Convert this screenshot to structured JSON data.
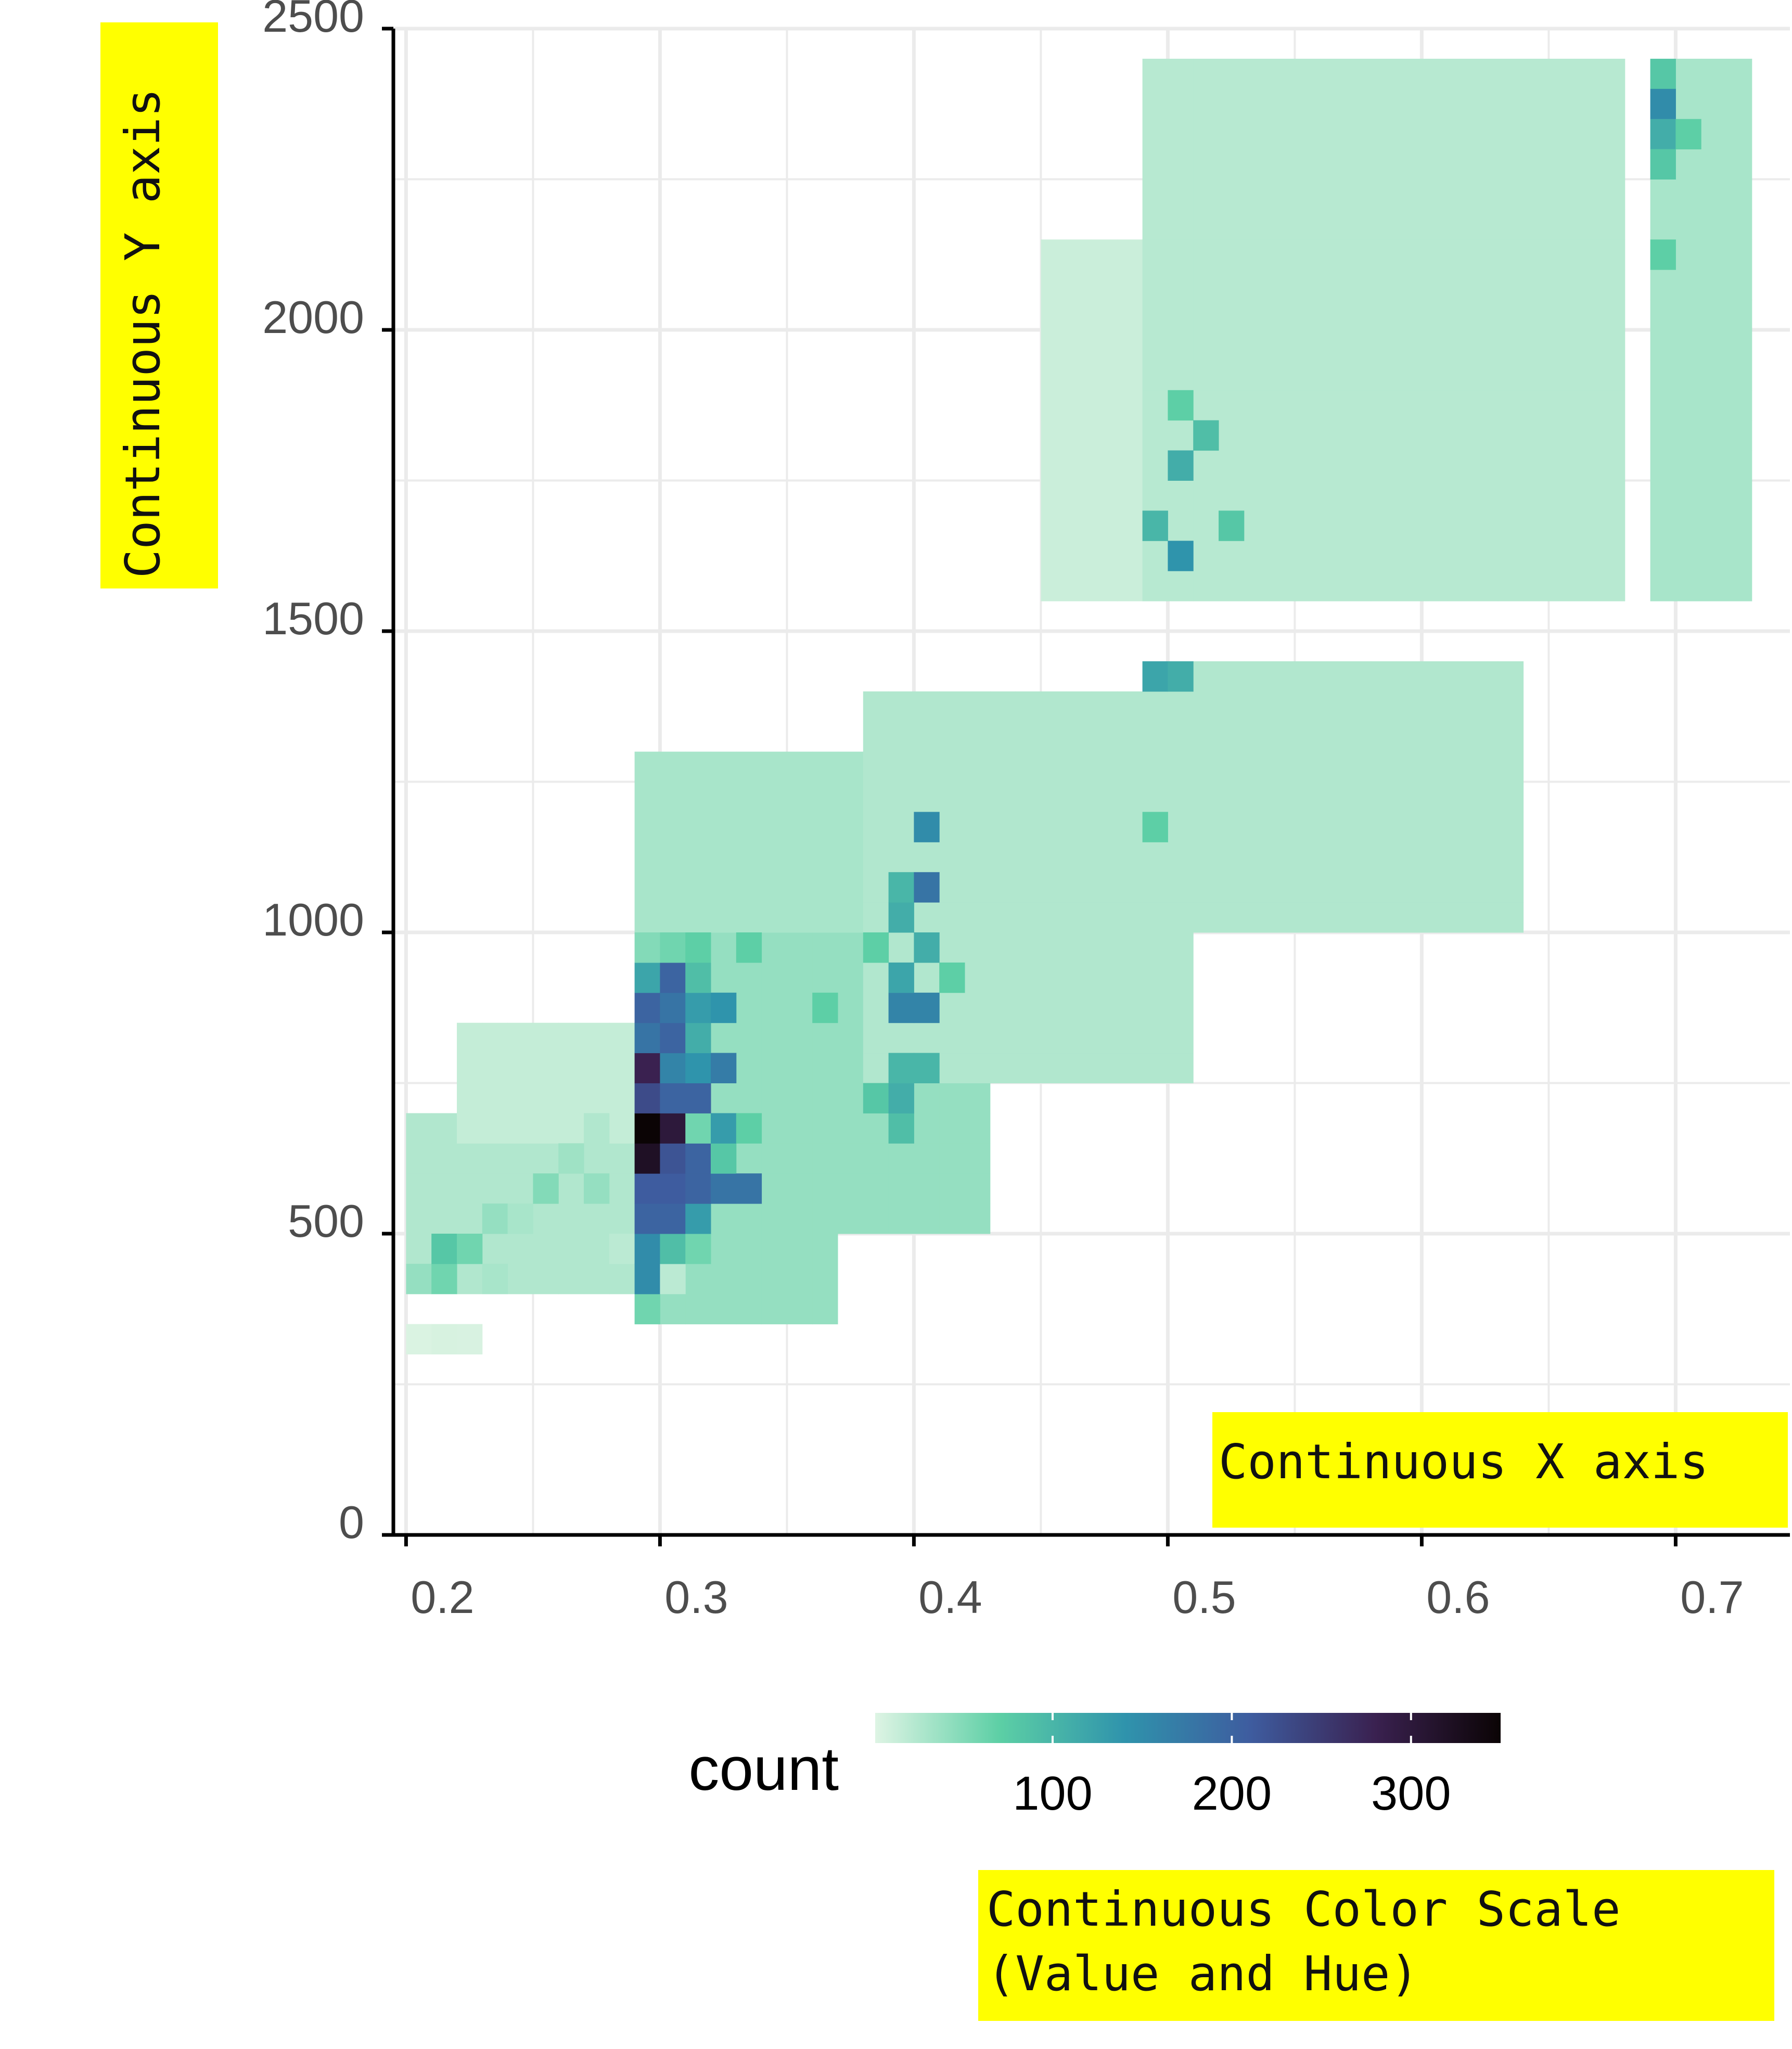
{
  "chart_data": {
    "type": "heatmap",
    "title": "",
    "xlabel": "",
    "ylabel": "",
    "xlim": [
      0.195,
      0.745
    ],
    "ylim": [
      0,
      2500
    ],
    "x_ticks": [
      "0.2",
      "0.3",
      "0.4",
      "0.5",
      "0.6",
      "0.7"
    ],
    "y_ticks": [
      "0",
      "500",
      "1000",
      "1500",
      "2000",
      "2500"
    ],
    "bin_width": [
      0.01,
      50
    ],
    "grid": true,
    "colors": {
      "background": "#ffffff",
      "grid": "#ebebeb",
      "axis": "#000000",
      "annotation": "#ffff00"
    },
    "bins": [
      {
        "x": 0.2,
        "y": 300,
        "count": 3
      },
      {
        "x": 0.21,
        "y": 300,
        "count": 5
      },
      {
        "x": 0.22,
        "y": 300,
        "count": 4
      },
      {
        "x": 0.2,
        "y": 400,
        "count": 40
      },
      {
        "x": 0.21,
        "y": 400,
        "count": 60
      },
      {
        "x": 0.21,
        "y": 450,
        "count": 80
      },
      {
        "x": 0.22,
        "y": 450,
        "count": 60
      },
      {
        "x": 0.23,
        "y": 400,
        "count": 30
      },
      {
        "x": 0.23,
        "y": 500,
        "count": 40
      },
      {
        "x": 0.24,
        "y": 500,
        "count": 30
      },
      {
        "x": 0.25,
        "y": 550,
        "count": 50
      },
      {
        "x": 0.26,
        "y": 600,
        "count": 35
      },
      {
        "x": 0.27,
        "y": 550,
        "count": 40
      },
      {
        "x": 0.27,
        "y": 650,
        "count": 25
      },
      {
        "x": 0.28,
        "y": 450,
        "count": 20
      },
      {
        "x": 0.29,
        "y": 350,
        "count": 60
      },
      {
        "x": 0.29,
        "y": 400,
        "count": 150
      },
      {
        "x": 0.29,
        "y": 450,
        "count": 150
      },
      {
        "x": 0.29,
        "y": 500,
        "count": 200
      },
      {
        "x": 0.29,
        "y": 550,
        "count": 210
      },
      {
        "x": 0.29,
        "y": 600,
        "count": 320
      },
      {
        "x": 0.29,
        "y": 650,
        "count": 350
      },
      {
        "x": 0.29,
        "y": 700,
        "count": 230
      },
      {
        "x": 0.29,
        "y": 750,
        "count": 280
      },
      {
        "x": 0.29,
        "y": 800,
        "count": 180
      },
      {
        "x": 0.29,
        "y": 850,
        "count": 200
      },
      {
        "x": 0.29,
        "y": 900,
        "count": 120
      },
      {
        "x": 0.29,
        "y": 950,
        "count": 50
      },
      {
        "x": 0.3,
        "y": 400,
        "count": 20
      },
      {
        "x": 0.3,
        "y": 450,
        "count": 90
      },
      {
        "x": 0.3,
        "y": 500,
        "count": 200
      },
      {
        "x": 0.3,
        "y": 550,
        "count": 210
      },
      {
        "x": 0.3,
        "y": 600,
        "count": 220
      },
      {
        "x": 0.3,
        "y": 650,
        "count": 300
      },
      {
        "x": 0.3,
        "y": 700,
        "count": 200
      },
      {
        "x": 0.3,
        "y": 750,
        "count": 160
      },
      {
        "x": 0.3,
        "y": 800,
        "count": 200
      },
      {
        "x": 0.3,
        "y": 850,
        "count": 180
      },
      {
        "x": 0.3,
        "y": 900,
        "count": 200
      },
      {
        "x": 0.3,
        "y": 950,
        "count": 60
      },
      {
        "x": 0.31,
        "y": 450,
        "count": 60
      },
      {
        "x": 0.31,
        "y": 500,
        "count": 130
      },
      {
        "x": 0.31,
        "y": 550,
        "count": 200
      },
      {
        "x": 0.31,
        "y": 600,
        "count": 200
      },
      {
        "x": 0.31,
        "y": 650,
        "count": 60
      },
      {
        "x": 0.31,
        "y": 700,
        "count": 200
      },
      {
        "x": 0.31,
        "y": 750,
        "count": 140
      },
      {
        "x": 0.31,
        "y": 800,
        "count": 110
      },
      {
        "x": 0.31,
        "y": 850,
        "count": 130
      },
      {
        "x": 0.31,
        "y": 900,
        "count": 90
      },
      {
        "x": 0.31,
        "y": 950,
        "count": 70
      },
      {
        "x": 0.32,
        "y": 550,
        "count": 180
      },
      {
        "x": 0.32,
        "y": 600,
        "count": 80
      },
      {
        "x": 0.32,
        "y": 650,
        "count": 130
      },
      {
        "x": 0.32,
        "y": 750,
        "count": 170
      },
      {
        "x": 0.32,
        "y": 850,
        "count": 140
      },
      {
        "x": 0.33,
        "y": 550,
        "count": 180
      },
      {
        "x": 0.33,
        "y": 650,
        "count": 70
      },
      {
        "x": 0.33,
        "y": 950,
        "count": 70
      },
      {
        "x": 0.36,
        "y": 850,
        "count": 70
      },
      {
        "x": 0.38,
        "y": 700,
        "count": 80
      },
      {
        "x": 0.38,
        "y": 950,
        "count": 70
      },
      {
        "x": 0.39,
        "y": 650,
        "count": 90
      },
      {
        "x": 0.39,
        "y": 700,
        "count": 110
      },
      {
        "x": 0.39,
        "y": 750,
        "count": 100
      },
      {
        "x": 0.39,
        "y": 850,
        "count": 160
      },
      {
        "x": 0.39,
        "y": 900,
        "count": 120
      },
      {
        "x": 0.39,
        "y": 1000,
        "count": 110
      },
      {
        "x": 0.39,
        "y": 1050,
        "count": 100
      },
      {
        "x": 0.4,
        "y": 750,
        "count": 100
      },
      {
        "x": 0.4,
        "y": 850,
        "count": 160
      },
      {
        "x": 0.4,
        "y": 950,
        "count": 110
      },
      {
        "x": 0.4,
        "y": 1050,
        "count": 180
      },
      {
        "x": 0.4,
        "y": 1150,
        "count": 150
      },
      {
        "x": 0.41,
        "y": 900,
        "count": 70
      },
      {
        "x": 0.49,
        "y": 1400,
        "count": 120
      },
      {
        "x": 0.5,
        "y": 1400,
        "count": 110
      },
      {
        "x": 0.49,
        "y": 1150,
        "count": 70
      },
      {
        "x": 0.49,
        "y": 1650,
        "count": 100
      },
      {
        "x": 0.5,
        "y": 1600,
        "count": 140
      },
      {
        "x": 0.5,
        "y": 1750,
        "count": 110
      },
      {
        "x": 0.5,
        "y": 1850,
        "count": 70
      },
      {
        "x": 0.51,
        "y": 1800,
        "count": 90
      },
      {
        "x": 0.52,
        "y": 1650,
        "count": 80
      },
      {
        "x": 0.69,
        "y": 2400,
        "count": 80
      },
      {
        "x": 0.69,
        "y": 2350,
        "count": 150
      },
      {
        "x": 0.69,
        "y": 2300,
        "count": 110
      },
      {
        "x": 0.69,
        "y": 2250,
        "count": 80
      },
      {
        "x": 0.69,
        "y": 2100,
        "count": 70
      },
      {
        "x": 0.7,
        "y": 2300,
        "count": 70
      }
    ],
    "background_density": "light bins throughout the clusters",
    "legend": {
      "title": "count",
      "placement": "bottom",
      "ticks": [
        "100",
        "200",
        "300"
      ],
      "tick_values": [
        100,
        200,
        300
      ],
      "range": [
        1,
        350
      ],
      "colors": [
        "#def4e4",
        "#5ccfa5",
        "#2f93ac",
        "#3e5c9f",
        "#3a2150",
        "#0b0405"
      ]
    }
  },
  "annotations": {
    "y_axis": "Continuous Y axis",
    "x_axis": "Continuous X axis",
    "color_scale": "Continuous Color Scale\n(Value and Hue)"
  }
}
